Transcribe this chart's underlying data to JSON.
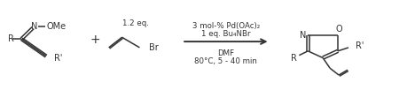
{
  "background_color": "#ffffff",
  "text_color": "#333333",
  "figure_width": 4.6,
  "figure_height": 1.02,
  "dpi": 100,
  "arrow_label_line1": "3 mol-% Pd(OAc)₂",
  "arrow_label_line2": "1 eq. Bu₄NBr",
  "arrow_label_line3": "DMF",
  "arrow_label_line4": "80°C, 5 - 40 min"
}
